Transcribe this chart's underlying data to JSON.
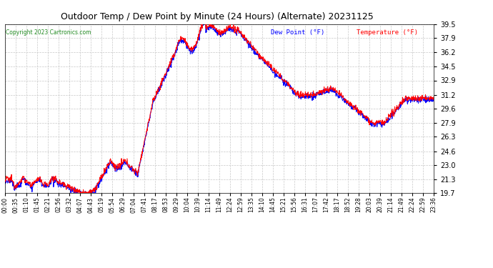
{
  "title": "Outdoor Temp / Dew Point by Minute (24 Hours) (Alternate) 20231125",
  "copyright": "Copyright 2023 Cartronics.com",
  "legend_dew": "Dew Point (°F)",
  "legend_temp": "Temperature (°F)",
  "temp_color": "#ff0000",
  "dew_color": "#0000ff",
  "bg_color": "#ffffff",
  "grid_color": "#c8c8c8",
  "ylim_min": 19.7,
  "ylim_max": 39.5,
  "yticks": [
    19.7,
    21.3,
    23.0,
    24.6,
    26.3,
    27.9,
    29.6,
    31.2,
    32.9,
    34.5,
    36.2,
    37.9,
    39.5
  ],
  "xtick_labels": [
    "00:00",
    "00:35",
    "01:10",
    "01:45",
    "02:21",
    "02:56",
    "03:32",
    "04:07",
    "04:43",
    "05:19",
    "05:54",
    "06:29",
    "07:04",
    "07:41",
    "08:17",
    "08:53",
    "09:29",
    "10:04",
    "10:39",
    "11:14",
    "11:49",
    "12:24",
    "12:59",
    "13:35",
    "14:10",
    "14:45",
    "15:21",
    "15:56",
    "16:31",
    "17:07",
    "17:42",
    "18:17",
    "18:52",
    "19:28",
    "20:03",
    "20:39",
    "21:14",
    "21:49",
    "22:24",
    "22:59",
    "23:36"
  ],
  "n_points": 1440
}
